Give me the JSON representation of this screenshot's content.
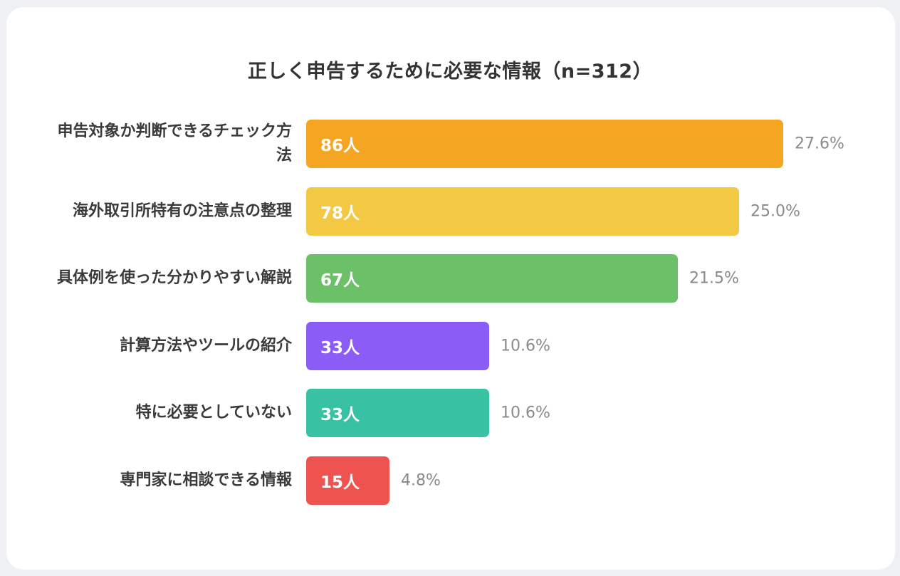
{
  "chart_data": {
    "type": "bar",
    "orientation": "horizontal",
    "title": "正しく申告するために必要な情報（n=312）",
    "categories": [
      "申告対象か判断できるチェック方法",
      "海外取引所特有の注意点の整理",
      "具体例を使った分かりやすい解説",
      "計算方法やツールの紹介",
      "特に必要としていない",
      "専門家に相談できる情報"
    ],
    "values": [
      86,
      78,
      67,
      33,
      33,
      15
    ],
    "value_labels": [
      "86人",
      "78人",
      "67人",
      "33人",
      "33人",
      "15人"
    ],
    "percent_labels": [
      "27.6%",
      "25.0%",
      "21.5%",
      "10.6%",
      "10.6%",
      "4.8%"
    ],
    "colors": [
      "#f4a623",
      "#f3c943",
      "#6cc067",
      "#8b5cf6",
      "#38c1a2",
      "#ef5350"
    ],
    "xlim": [
      0,
      86
    ],
    "grid": false,
    "legend": "none"
  }
}
